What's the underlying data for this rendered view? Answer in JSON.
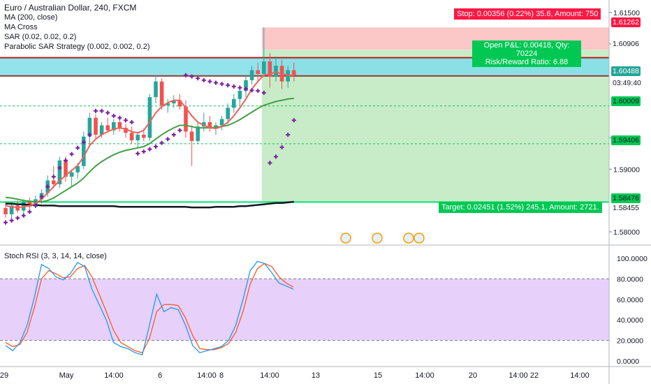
{
  "legend": {
    "title": "Euro / Australian Dollar, 240, FXCM",
    "indicators": [
      "MA (200, close)",
      "MA Cross",
      "SAR (0.02, 0.02, 0.2)",
      "Parabolic SAR Strategy (0.002, 0.002, 0.2)"
    ],
    "oscillator": "Stoch RSI (3, 3, 14, 14, close)"
  },
  "position": {
    "stop_label": "Stop: 0.00356 (0.22%) 35.6, Amount: 750",
    "pnl_label": "Open P&L: 0.00418, Qty: 70224",
    "rr_label": "Risk/Reward Ratio: 6.88",
    "target_label": "Target: 0.02451 (1.52%) 245.1, Amount: 2721."
  },
  "price_axis": {
    "ticks": [
      "1.61500",
      "1.61000",
      "1.59500",
      "1.59000",
      "1.58000"
    ],
    "tags": [
      {
        "label": "1.61262",
        "bg": "#ff1744",
        "fg": "#ffffff"
      },
      {
        "label": "1.60906",
        "bg": "#ffffff",
        "fg": "#131722"
      },
      {
        "label": "1.60488",
        "bg": "#26a69a",
        "fg": "#ffffff"
      },
      {
        "label": "03:49:40",
        "bg": "#ffffff",
        "fg": "#131722"
      },
      {
        "label": "1.60009",
        "bg": "#00c853",
        "fg": "#131722"
      },
      {
        "label": "1.59406",
        "bg": "#00c853",
        "fg": "#131722"
      },
      {
        "label": "1.58476",
        "bg": "#00c853",
        "fg": "#131722"
      },
      {
        "label": "1.58455",
        "bg": "#ffffff",
        "fg": "#131722"
      }
    ]
  },
  "rsi_axis": {
    "ticks": [
      "100.0000",
      "80.0000",
      "60.0000",
      "40.0000",
      "20.0000",
      "0.0000"
    ]
  },
  "time_axis": {
    "ticks": [
      "29",
      "May",
      "14:00",
      "6",
      "14:00",
      "8",
      "14:00",
      "13",
      "15",
      "14:00",
      "20",
      "14:00",
      "22",
      "14:00"
    ]
  },
  "colors": {
    "up": "#26a69a",
    "down": "#ef5350",
    "ma200": "#131722",
    "ma_fast": "#f0605a",
    "ma_slow": "#43a047",
    "sar": "#7b1fa2",
    "stoch_k": "#2196f3",
    "stoch_d": "#ff5722",
    "target_zone": "#c8ecc8",
    "stop_zone": "#fbc7c7",
    "cyan_band": "#80deea",
    "rsi_band": "#e1c6fa"
  },
  "chart_data": [
    {
      "type": "candlestick",
      "title": "Euro / Australian Dollar, 240, FXCM",
      "ylim": [
        1.578,
        1.617
      ],
      "horizontal_levels": {
        "stop": 1.61262,
        "entry": 1.60488,
        "target_zone_top": 1.60906,
        "level_1": 1.60009,
        "level_2": 1.59406,
        "target": 1.58476,
        "last": 1.58455
      },
      "candles": [
        [
          1.5838,
          1.5848,
          1.5822,
          1.5828
        ],
        [
          1.5828,
          1.5846,
          1.582,
          1.5842
        ],
        [
          1.5842,
          1.585,
          1.583,
          1.5834
        ],
        [
          1.5834,
          1.5852,
          1.5826,
          1.5848
        ],
        [
          1.5848,
          1.5855,
          1.5836,
          1.584
        ],
        [
          1.584,
          1.5858,
          1.5838,
          1.5852
        ],
        [
          1.5852,
          1.5868,
          1.5845,
          1.5862
        ],
        [
          1.5862,
          1.589,
          1.5856,
          1.5882
        ],
        [
          1.5882,
          1.5905,
          1.587,
          1.5876
        ],
        [
          1.5876,
          1.592,
          1.587,
          1.5914
        ],
        [
          1.5914,
          1.592,
          1.588,
          1.5888
        ],
        [
          1.5888,
          1.59,
          1.5872,
          1.5895
        ],
        [
          1.5895,
          1.591,
          1.5885,
          1.5905
        ],
        [
          1.5905,
          1.596,
          1.59,
          1.5952
        ],
        [
          1.5952,
          1.599,
          1.5938,
          1.5982
        ],
        [
          1.5982,
          1.5988,
          1.5948,
          1.5955
        ],
        [
          1.5955,
          1.5975,
          1.595,
          1.597
        ],
        [
          1.597,
          1.5982,
          1.5958,
          1.5962
        ],
        [
          1.5962,
          1.598,
          1.5955,
          1.5975
        ],
        [
          1.5975,
          1.598,
          1.596,
          1.5966
        ],
        [
          1.5966,
          1.5972,
          1.595,
          1.5958
        ],
        [
          1.5958,
          1.5968,
          1.594,
          1.5946
        ],
        [
          1.5946,
          1.596,
          1.5935,
          1.5955
        ],
        [
          1.5955,
          1.5965,
          1.5945,
          1.595
        ],
        [
          1.595,
          1.602,
          1.5945,
          1.6015
        ],
        [
          1.6015,
          1.605,
          1.6005,
          1.604
        ],
        [
          1.604,
          1.6045,
          1.5995,
          1.6002
        ],
        [
          1.6002,
          1.6012,
          1.599,
          1.6005
        ],
        [
          1.6005,
          1.6018,
          1.5998,
          1.601
        ],
        [
          1.601,
          1.602,
          1.5995,
          1.6
        ],
        [
          1.6,
          1.601,
          1.595,
          1.596
        ],
        [
          1.596,
          1.597,
          1.5905,
          1.5945
        ],
        [
          1.5945,
          1.5975,
          1.594,
          1.5968
        ],
        [
          1.5968,
          1.599,
          1.596,
          1.5975
        ],
        [
          1.5975,
          1.5985,
          1.596,
          1.5966
        ],
        [
          1.5966,
          1.5975,
          1.5955,
          1.597
        ],
        [
          1.597,
          1.5985,
          1.5962,
          1.598
        ],
        [
          1.598,
          1.6005,
          1.5972,
          1.5998
        ],
        [
          1.5998,
          1.602,
          1.599,
          1.6012
        ],
        [
          1.6012,
          1.603,
          1.6002,
          1.6025
        ],
        [
          1.6025,
          1.605,
          1.6015,
          1.6042
        ],
        [
          1.6042,
          1.6065,
          1.6035,
          1.6058
        ],
        [
          1.6058,
          1.607,
          1.604,
          1.6052
        ],
        [
          1.6052,
          1.6126,
          1.6048,
          1.6072
        ],
        [
          1.6072,
          1.6085,
          1.603,
          1.6048
        ],
        [
          1.6048,
          1.608,
          1.604,
          1.6065
        ],
        [
          1.6065,
          1.6075,
          1.6028,
          1.604
        ],
        [
          1.604,
          1.6065,
          1.603,
          1.6058
        ],
        [
          1.6058,
          1.607,
          1.604,
          1.605
        ]
      ],
      "ma200": [
        1.5845,
        1.5845,
        1.5844,
        1.5844,
        1.5843,
        1.5843,
        1.5842,
        1.5842,
        1.5842,
        1.5841,
        1.5841,
        1.5841,
        1.5841,
        1.5841,
        1.5841,
        1.5841,
        1.5841,
        1.5841,
        1.5841,
        1.584,
        1.584,
        1.584,
        1.584,
        1.584,
        1.584,
        1.584,
        1.584,
        1.584,
        1.584,
        1.584,
        1.584,
        1.5839,
        1.5839,
        1.5839,
        1.5839,
        1.584,
        1.584,
        1.584,
        1.584,
        1.5841,
        1.5841,
        1.5842,
        1.5843,
        1.5844,
        1.5845,
        1.5846,
        1.5846,
        1.5847,
        1.5848
      ],
      "ma_fast": [
        1.5842,
        1.584,
        1.5839,
        1.584,
        1.5842,
        1.5845,
        1.5852,
        1.5862,
        1.5872,
        1.5882,
        1.589,
        1.5898,
        1.5906,
        1.592,
        1.5938,
        1.5948,
        1.5955,
        1.596,
        1.5964,
        1.5966,
        1.5964,
        1.596,
        1.5958,
        1.5962,
        1.5975,
        1.599,
        1.6,
        1.6006,
        1.601,
        1.601,
        1.5998,
        1.5985,
        1.5975,
        1.597,
        1.5966,
        1.5965,
        1.5968,
        1.5975,
        1.5985,
        1.5998,
        1.6012,
        1.6028,
        1.604,
        1.605,
        1.6052,
        1.6055,
        1.6052,
        1.605,
        1.605
      ],
      "ma_slow": [
        1.5855,
        1.5854,
        1.5852,
        1.585,
        1.5849,
        1.5848,
        1.5848,
        1.585,
        1.5854,
        1.586,
        1.5866,
        1.5872,
        1.5878,
        1.5886,
        1.5896,
        1.5905,
        1.5912,
        1.5918,
        1.5923,
        1.5927,
        1.593,
        1.5932,
        1.5934,
        1.5936,
        1.5941,
        1.5948,
        1.5955,
        1.5961,
        1.5966,
        1.597,
        1.597,
        1.5968,
        1.5966,
        1.5966,
        1.5966,
        1.5967,
        1.5968,
        1.597,
        1.5974,
        1.5979,
        1.5985,
        1.5991,
        1.5997,
        1.6002,
        1.6005,
        1.6008,
        1.601,
        1.6012,
        1.6013
      ],
      "sar": [
        1.5815,
        1.5818,
        1.5822,
        1.5826,
        1.5832,
        1.5842,
        1.5856,
        1.5872,
        1.5888,
        1.5902,
        1.5914,
        1.5924,
        1.5934,
        1.5943,
        1.5955,
        1.5993,
        1.5993,
        1.599,
        1.5985,
        1.5982,
        1.5978,
        1.5975,
        1.5925,
        1.5928,
        1.5932,
        1.5936,
        1.5942,
        1.5948,
        1.5955,
        1.5962,
        1.605,
        1.6048,
        1.6045,
        1.6042,
        1.604,
        1.6038,
        1.6036,
        1.6034,
        1.6032,
        1.603,
        1.6028,
        1.6026,
        1.6025,
        1.6022,
        1.591,
        1.592,
        1.5935,
        1.5955,
        1.5978
      ]
    },
    {
      "type": "line",
      "title": "Stoch RSI (3, 3, 14, 14, close)",
      "ylim": [
        0,
        100
      ],
      "bands": [
        20,
        80
      ],
      "series": [
        {
          "name": "K",
          "values": [
            15,
            10,
            18,
            35,
            62,
            94,
            90,
            82,
            79,
            85,
            96,
            92,
            70,
            55,
            40,
            18,
            14,
            12,
            8,
            6,
            35,
            65,
            48,
            52,
            50,
            35,
            15,
            8,
            10,
            12,
            14,
            20,
            35,
            60,
            88,
            97,
            95,
            86,
            76,
            73,
            70
          ]
        },
        {
          "name": "D",
          "values": [
            18,
            14,
            16,
            28,
            52,
            80,
            88,
            85,
            81,
            82,
            90,
            93,
            82,
            65,
            48,
            30,
            18,
            14,
            10,
            8,
            22,
            48,
            55,
            55,
            54,
            42,
            25,
            12,
            11,
            11,
            13,
            17,
            28,
            48,
            75,
            90,
            95,
            92,
            82,
            76,
            72
          ]
        }
      ]
    }
  ]
}
